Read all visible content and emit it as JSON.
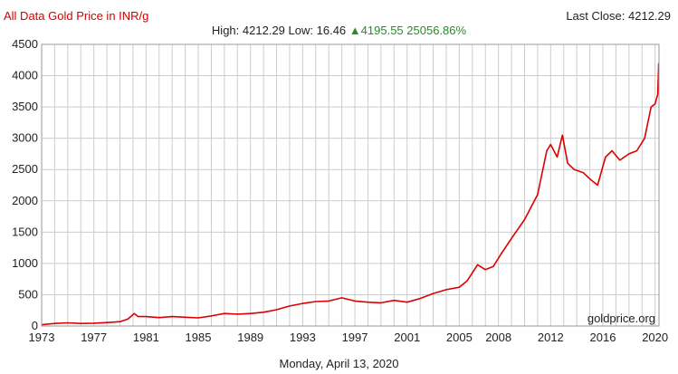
{
  "header": {
    "title": "All Data Gold Price in INR/g",
    "last_close_label": "Last Close:",
    "last_close_value": "4212.29",
    "high_label": "High:",
    "high_value": "4212.29",
    "low_label": "Low:",
    "low_value": "16.46",
    "change_arrow": "▲",
    "change_value": "4195.55",
    "change_pct": "25056.86%"
  },
  "watermark": "goldprice.org",
  "date_caption": "Monday, April 13, 2020",
  "colors": {
    "line": "#dd0000",
    "title": "#d40000",
    "change": "#2a8a2a",
    "grid": "#cccccc"
  },
  "chart_data": {
    "type": "line",
    "title": "All Data Gold Price in INR/g",
    "xlabel": "",
    "ylabel": "",
    "xlim": [
      1973,
      2020.3
    ],
    "ylim": [
      0,
      4500
    ],
    "grid": true,
    "y_ticks": [
      0,
      500,
      1000,
      1500,
      2000,
      2500,
      3000,
      3500,
      4000,
      4500
    ],
    "x_tick_labels": [
      "1973",
      "1977",
      "1981",
      "1985",
      "1989",
      "1993",
      "1997",
      "2001",
      "2005",
      "2008",
      "2012",
      "2016",
      "2020"
    ],
    "x_tick_values": [
      1973,
      1977,
      1981,
      1985,
      1989,
      1993,
      1997,
      2001,
      2005,
      2008,
      2012,
      2016,
      2020
    ],
    "series": [
      {
        "x": [
          1973,
          1974,
          1975,
          1976,
          1977,
          1978,
          1979,
          1979.6,
          1980.1,
          1980.4,
          1981,
          1982,
          1983,
          1984,
          1985,
          1986,
          1987,
          1988,
          1989,
          1990,
          1991,
          1992,
          1993,
          1994,
          1995,
          1996,
          1997,
          1998,
          1999,
          2000,
          2001,
          2002,
          2003,
          2004,
          2005,
          2005.6,
          2006.0,
          2006.4,
          2007,
          2007.6,
          2008.2,
          2009,
          2010,
          2011,
          2011.7,
          2012,
          2012.5,
          2012.9,
          2013.3,
          2013.8,
          2014.5,
          2015,
          2015.6,
          2016.2,
          2016.7,
          2017.3,
          2018,
          2018.6,
          2019.2,
          2019.7,
          2020.0,
          2020.2,
          2020.28
        ],
        "values": [
          20,
          40,
          50,
          40,
          45,
          55,
          70,
          110,
          200,
          150,
          150,
          135,
          150,
          140,
          130,
          160,
          200,
          190,
          200,
          220,
          260,
          320,
          360,
          390,
          400,
          450,
          400,
          380,
          370,
          410,
          380,
          440,
          520,
          580,
          620,
          720,
          850,
          980,
          900,
          950,
          1150,
          1400,
          1700,
          2100,
          2800,
          2900,
          2700,
          3050,
          2600,
          2500,
          2450,
          2350,
          2250,
          2700,
          2800,
          2650,
          2750,
          2800,
          3000,
          3500,
          3550,
          3700,
          4200
        ]
      }
    ]
  }
}
